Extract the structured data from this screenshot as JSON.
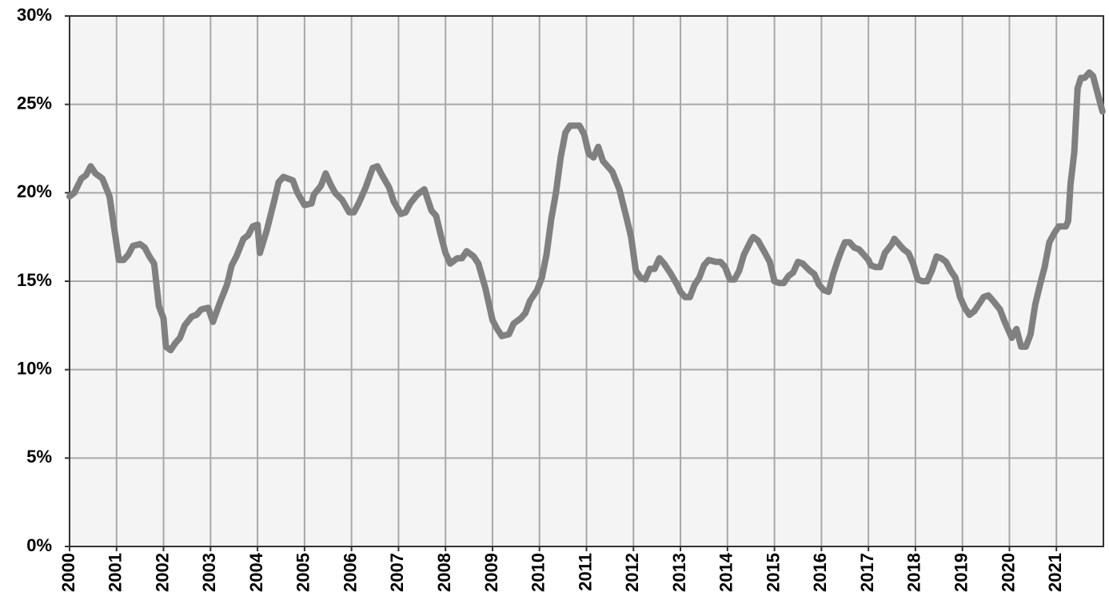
{
  "chart_data": {
    "type": "line",
    "color": "#808080",
    "grid": true,
    "xlim": [
      2000,
      2022
    ],
    "xticks": [
      2000,
      2001,
      2002,
      2003,
      2004,
      2005,
      2006,
      2007,
      2008,
      2009,
      2010,
      2011,
      2012,
      2013,
      2014,
      2015,
      2016,
      2017,
      2018,
      2019,
      2020,
      2021
    ],
    "ylim": [
      0,
      30
    ],
    "yticks": [
      {
        "value": 0,
        "label": "0%"
      },
      {
        "value": 5,
        "label": "5%"
      },
      {
        "value": 10,
        "label": "10%"
      },
      {
        "value": 15,
        "label": "15%"
      },
      {
        "value": 20,
        "label": "20%"
      },
      {
        "value": 25,
        "label": "25%"
      },
      {
        "value": 30,
        "label": "30%"
      }
    ],
    "x": [
      2000.0,
      2000.1,
      2000.25,
      2000.35,
      2000.45,
      2000.55,
      2000.7,
      2000.85,
      2000.95,
      2001.05,
      2001.15,
      2001.25,
      2001.35,
      2001.5,
      2001.6,
      2001.7,
      2001.8,
      2001.9,
      2002.0,
      2002.05,
      2002.15,
      2002.25,
      2002.35,
      2002.45,
      2002.6,
      2002.7,
      2002.8,
      2002.95,
      2003.05,
      2003.2,
      2003.35,
      2003.45,
      2003.55,
      2003.7,
      2003.8,
      2003.9,
      2004.0,
      2004.05,
      2004.2,
      2004.35,
      2004.45,
      2004.55,
      2004.65,
      2004.75,
      2004.85,
      2005.0,
      2005.15,
      2005.2,
      2005.35,
      2005.45,
      2005.55,
      2005.65,
      2005.8,
      2005.95,
      2006.05,
      2006.15,
      2006.3,
      2006.45,
      2006.55,
      2006.65,
      2006.8,
      2006.9,
      2007.05,
      2007.15,
      2007.25,
      2007.4,
      2007.55,
      2007.7,
      2007.8,
      2007.9,
      2008.0,
      2008.1,
      2008.25,
      2008.35,
      2008.45,
      2008.6,
      2008.7,
      2008.85,
      2009.0,
      2009.1,
      2009.2,
      2009.35,
      2009.45,
      2009.6,
      2009.7,
      2009.8,
      2009.95,
      2010.05,
      2010.15,
      2010.25,
      2010.35,
      2010.45,
      2010.55,
      2010.65,
      2010.75,
      2010.85,
      2010.95,
      2011.05,
      2011.15,
      2011.25,
      2011.35,
      2011.45,
      2011.55,
      2011.7,
      2011.85,
      2011.95,
      2012.05,
      2012.15,
      2012.25,
      2012.35,
      2012.45,
      2012.55,
      2012.65,
      2012.8,
      2012.95,
      2013.0,
      2013.1,
      2013.2,
      2013.3,
      2013.4,
      2013.5,
      2013.6,
      2013.75,
      2013.85,
      2013.95,
      2014.05,
      2014.15,
      2014.25,
      2014.35,
      2014.5,
      2014.55,
      2014.65,
      2014.8,
      2014.9,
      2015.0,
      2015.1,
      2015.2,
      2015.3,
      2015.4,
      2015.5,
      2015.6,
      2015.75,
      2015.85,
      2015.95,
      2016.05,
      2016.15,
      2016.25,
      2016.35,
      2016.45,
      2016.5,
      2016.6,
      2016.7,
      2016.8,
      2016.9,
      2017.0,
      2017.05,
      2017.15,
      2017.25,
      2017.35,
      2017.5,
      2017.55,
      2017.65,
      2017.75,
      2017.85,
      2017.95,
      2018.05,
      2018.15,
      2018.25,
      2018.35,
      2018.45,
      2018.55,
      2018.65,
      2018.75,
      2018.85,
      2018.95,
      2019.05,
      2019.15,
      2019.25,
      2019.35,
      2019.45,
      2019.55,
      2019.65,
      2019.8,
      2019.9,
      2020.0,
      2020.05,
      2020.15,
      2020.25,
      2020.35,
      2020.45,
      2020.55,
      2020.65,
      2020.75,
      2020.85,
      2020.95,
      2021.05,
      2021.1,
      2021.2,
      2021.25,
      2021.3,
      2021.38,
      2021.45,
      2021.52,
      2021.6,
      2021.7,
      2021.78,
      2021.88,
      2021.98
    ],
    "values": [
      19.8,
      20.0,
      20.8,
      21.0,
      21.5,
      21.1,
      20.8,
      19.8,
      18.0,
      16.2,
      16.2,
      16.5,
      17.0,
      17.1,
      16.9,
      16.4,
      16.0,
      13.6,
      12.9,
      11.3,
      11.1,
      11.5,
      11.8,
      12.5,
      13.0,
      13.1,
      13.4,
      13.5,
      12.7,
      13.8,
      14.8,
      15.9,
      16.4,
      17.4,
      17.6,
      18.1,
      18.2,
      16.6,
      17.9,
      19.5,
      20.6,
      20.9,
      20.8,
      20.7,
      20.0,
      19.3,
      19.4,
      19.9,
      20.4,
      21.1,
      20.5,
      20.0,
      19.6,
      18.9,
      18.9,
      19.4,
      20.3,
      21.4,
      21.5,
      21.0,
      20.3,
      19.5,
      18.8,
      18.9,
      19.4,
      19.9,
      20.2,
      19.0,
      18.7,
      17.6,
      16.6,
      16.0,
      16.3,
      16.3,
      16.7,
      16.4,
      16.0,
      14.6,
      12.8,
      12.3,
      11.9,
      12.0,
      12.6,
      12.9,
      13.2,
      13.9,
      14.5,
      15.2,
      16.5,
      18.5,
      20.0,
      22.0,
      23.4,
      23.8,
      23.8,
      23.8,
      23.3,
      22.2,
      22.0,
      22.6,
      21.8,
      21.5,
      21.2,
      20.2,
      18.6,
      17.5,
      15.6,
      15.2,
      15.1,
      15.7,
      15.7,
      16.3,
      16.0,
      15.4,
      14.7,
      14.4,
      14.1,
      14.1,
      14.8,
      15.2,
      15.9,
      16.2,
      16.1,
      16.1,
      15.8,
      15.1,
      15.1,
      15.6,
      16.5,
      17.3,
      17.5,
      17.3,
      16.6,
      16.1,
      15.0,
      14.9,
      14.9,
      15.3,
      15.5,
      16.1,
      16.0,
      15.6,
      15.4,
      14.8,
      14.5,
      14.4,
      15.4,
      16.2,
      16.9,
      17.2,
      17.2,
      16.9,
      16.8,
      16.5,
      16.2,
      15.9,
      15.8,
      15.8,
      16.6,
      17.1,
      17.4,
      17.1,
      16.8,
      16.6,
      16.0,
      15.1,
      15.0,
      15.0,
      15.6,
      16.4,
      16.3,
      16.1,
      15.6,
      15.2,
      14.1,
      13.5,
      13.1,
      13.3,
      13.7,
      14.1,
      14.2,
      13.9,
      13.4,
      12.7,
      12.1,
      11.8,
      12.3,
      11.3,
      11.3,
      12.0,
      13.7,
      14.8,
      15.8,
      17.2,
      17.7,
      18.1,
      18.1,
      18.1,
      18.4,
      20.5,
      22.3,
      25.9,
      26.5,
      26.5,
      26.8,
      26.6,
      25.6,
      24.6
    ]
  }
}
